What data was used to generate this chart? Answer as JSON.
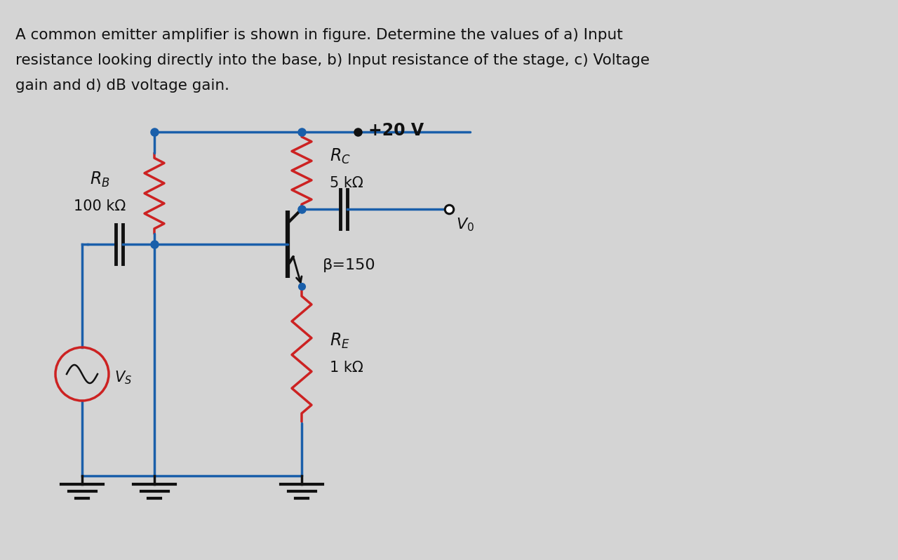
{
  "background_color": "#d4d4d4",
  "panel_color": "#e0e0e0",
  "text_color": "#111111",
  "title_line1": "A common emitter amplifier is shown in figure. Determine the values of a) Input",
  "title_line2": "resistance looking directly into the base, b) Input resistance of the stage, c) Voltage",
  "title_line3": "gain and d) dB voltage gain.",
  "title_fontsize": 15.5,
  "wire_color_blue": "#1a5faa",
  "wire_color_dark": "#111111",
  "resistor_color_red": "#cc2222",
  "vcc_label": "+20 V",
  "beta_label": "β=150",
  "vs_label": "Vₛ",
  "vo_label": "Vₒ"
}
